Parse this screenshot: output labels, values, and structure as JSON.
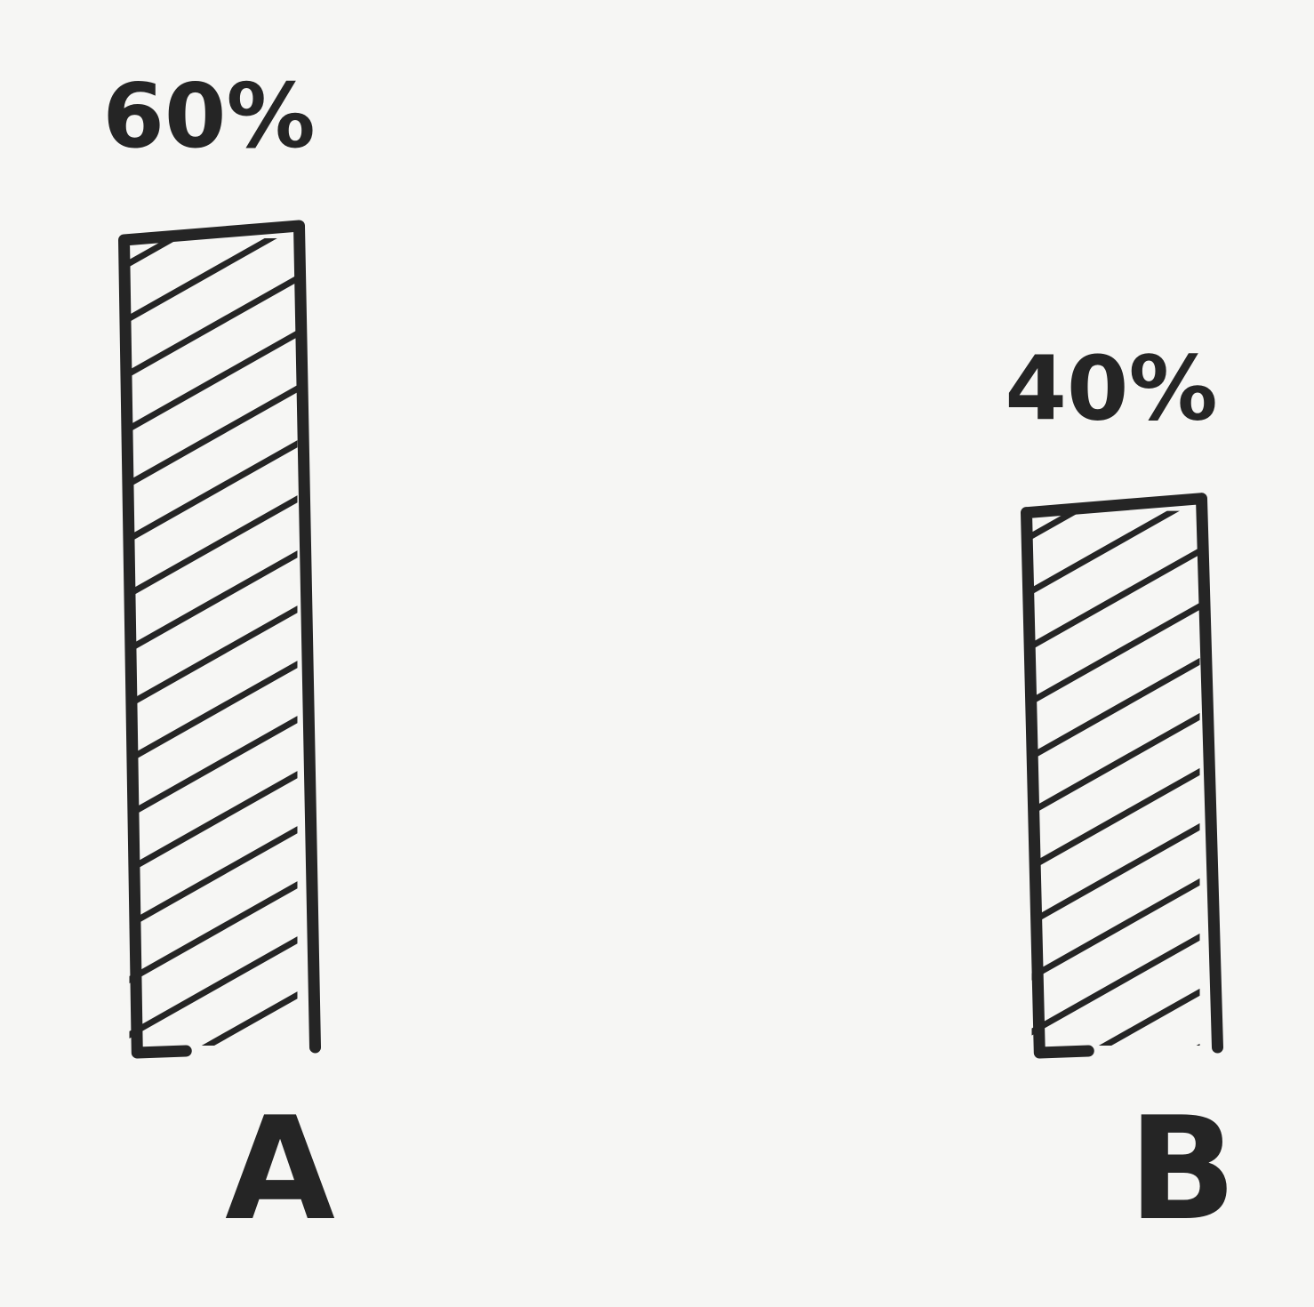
{
  "chart_data": {
    "type": "bar",
    "categories": [
      "A",
      "B"
    ],
    "values": [
      60,
      40
    ],
    "data_labels": [
      "60%",
      "40%"
    ],
    "ylim": [
      0,
      60
    ],
    "grid": false,
    "style": "hand-drawn hatched bars",
    "colors": {
      "ink": "#252525",
      "paper": "#f6f6f4"
    }
  }
}
